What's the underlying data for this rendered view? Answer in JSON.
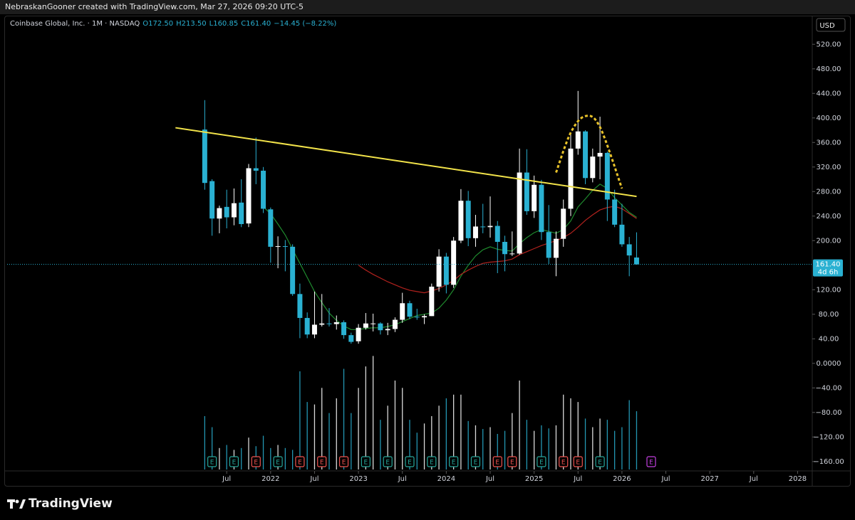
{
  "page": {
    "credit": "NebraskanGooner created with TradingView.com, Mar 27, 2026 09:20 UTC-5",
    "brand": "TradingView"
  },
  "chart_data": {
    "type": "candlestick",
    "header": {
      "name": "Coinbase Global, Inc. · 1M · NASDAQ",
      "open": "O172.50",
      "high": "H213.50",
      "low": "L160.85",
      "close": "C161.40",
      "change": "−14.45 (−8.22%)"
    },
    "currency": "USD",
    "x": [
      "2021-04",
      "2021-05",
      "2021-06",
      "2021-07",
      "2021-08",
      "2021-09",
      "2021-10",
      "2021-11",
      "2021-12",
      "2022-01",
      "2022-02",
      "2022-03",
      "2022-04",
      "2022-05",
      "2022-06",
      "2022-07",
      "2022-08",
      "2022-09",
      "2022-10",
      "2022-11",
      "2022-12",
      "2023-01",
      "2023-02",
      "2023-03",
      "2023-04",
      "2023-05",
      "2023-06",
      "2023-07",
      "2023-08",
      "2023-09",
      "2023-10",
      "2023-11",
      "2023-12",
      "2024-01",
      "2024-02",
      "2024-03",
      "2024-04",
      "2024-05",
      "2024-06",
      "2024-07",
      "2024-08",
      "2024-09",
      "2024-10",
      "2024-11",
      "2024-12",
      "2025-01",
      "2025-02",
      "2025-03",
      "2025-04",
      "2025-05",
      "2025-06",
      "2025-07",
      "2025-08",
      "2025-09",
      "2025-10",
      "2025-11",
      "2025-12",
      "2026-01",
      "2026-02",
      "2026-03"
    ],
    "open": [
      381,
      297,
      236,
      255,
      238,
      262,
      228,
      318,
      314,
      251,
      190,
      191,
      190,
      113,
      74,
      47,
      63,
      65,
      64,
      67,
      46,
      36,
      58,
      65,
      65,
      54,
      56,
      71,
      98,
      76,
      75,
      77,
      125,
      174,
      128,
      200,
      265,
      204,
      223,
      222,
      224,
      198,
      178,
      179,
      311,
      248,
      291,
      214,
      172,
      203,
      252,
      350,
      378,
      302,
      337,
      343,
      267,
      226,
      194,
      172.5
    ],
    "high": [
      429,
      300,
      257,
      283,
      285,
      300,
      325,
      368,
      320,
      254,
      207,
      201,
      194,
      130,
      83,
      117,
      113,
      90,
      78,
      70,
      50,
      64,
      82,
      81,
      67,
      66,
      75,
      115,
      102,
      89,
      80,
      130,
      186,
      180,
      206,
      284,
      281,
      242,
      260,
      272,
      232,
      208,
      215,
      350,
      349,
      306,
      299,
      258,
      215,
      267,
      375,
      444,
      380,
      350,
      402,
      345,
      283,
      260,
      206,
      213.5
    ],
    "low": [
      283,
      208,
      212,
      220,
      225,
      222,
      222,
      292,
      245,
      164,
      155,
      150,
      110,
      41,
      41,
      41,
      60,
      60,
      55,
      40,
      32,
      32,
      55,
      52,
      47,
      46,
      51,
      66,
      72,
      71,
      64,
      77,
      117,
      114,
      123,
      196,
      191,
      190,
      212,
      205,
      147,
      150,
      175,
      177,
      242,
      237,
      201,
      162,
      142,
      190,
      240,
      340,
      292,
      295,
      300,
      232,
      222,
      190,
      142,
      160.85
    ],
    "close": [
      294,
      236,
      253,
      238,
      261,
      227,
      318,
      314,
      252,
      190,
      191,
      190,
      113,
      74,
      47,
      63,
      65,
      64,
      67,
      46,
      35,
      58,
      65,
      65,
      54,
      56,
      71,
      98,
      76,
      75,
      77,
      125,
      174,
      128,
      200,
      265,
      204,
      223,
      222,
      224,
      198,
      178,
      179,
      311,
      248,
      291,
      214,
      172,
      203,
      252,
      350,
      378,
      302,
      337,
      343,
      267,
      226,
      194,
      175.85,
      161.4
    ],
    "up_color": "#ffffff",
    "down_color": "#2ab1d2",
    "overlays": [
      {
        "color": "#1f8a2e",
        "values": [
          null,
          null,
          null,
          null,
          null,
          null,
          null,
          null,
          255,
          244,
          227,
          209,
          186,
          163,
          140,
          117,
          99,
          82,
          70,
          61,
          55,
          55,
          57,
          58,
          58,
          60,
          63,
          68,
          73,
          78,
          80,
          82,
          90,
          103,
          120,
          142,
          160,
          175,
          185,
          190,
          186,
          184,
          183,
          195,
          205,
          213,
          218,
          215,
          212,
          218,
          232,
          255,
          268,
          282,
          292,
          285,
          270,
          258,
          246,
          238
        ]
      },
      {
        "color": "#b3221e",
        "values": [
          null,
          null,
          null,
          null,
          null,
          null,
          null,
          null,
          null,
          null,
          null,
          null,
          null,
          null,
          null,
          null,
          null,
          null,
          null,
          null,
          null,
          160,
          152,
          145,
          139,
          133,
          128,
          123,
          119,
          117,
          115,
          118,
          122,
          128,
          135,
          145,
          152,
          158,
          163,
          165,
          166,
          167,
          170,
          177,
          182,
          187,
          192,
          196,
          200,
          205,
          212,
          222,
          233,
          242,
          250,
          254,
          256,
          252,
          244,
          236
        ]
      }
    ],
    "volume": {
      "values": [
        -86,
        -104,
        -138,
        -133,
        -141,
        -138,
        -121,
        -135,
        -118,
        -138,
        -133,
        -138,
        -141,
        -13,
        -63,
        -67,
        -40,
        -81,
        -57,
        -9,
        -81,
        -40,
        -5,
        12,
        -92,
        -69,
        -28,
        -40,
        -92,
        -113,
        -98,
        -86,
        -69,
        -57,
        -51,
        -51,
        -94,
        -101,
        -107,
        -104,
        -115,
        -110,
        -81,
        -28,
        -92,
        -110,
        -101,
        -106,
        -101,
        -51,
        -57,
        -63,
        -90,
        -104,
        -90,
        -92,
        -110,
        -104,
        -60,
        -78
      ]
    },
    "drawings": [
      {
        "color": "#f2e34a",
        "dashed": false,
        "x": [
          "2020-12",
          "2026-03"
        ],
        "values": [
          384,
          272
        ]
      },
      {
        "color": "#e8c22a",
        "dashed": true,
        "x": [
          "2025-04",
          "2025-06",
          "2025-08",
          "2025-10",
          "2026-01"
        ],
        "values": [
          311,
          376,
          403,
          385,
          285
        ]
      }
    ],
    "events": [
      {
        "x": "2021-05",
        "label": "E",
        "color": "#26a69a"
      },
      {
        "x": "2021-08",
        "label": "E",
        "color": "#26a69a"
      },
      {
        "x": "2021-11",
        "label": "E",
        "color": "#ef5350"
      },
      {
        "x": "2022-02",
        "label": "E",
        "color": "#26a69a"
      },
      {
        "x": "2022-05",
        "label": "E",
        "color": "#ef5350"
      },
      {
        "x": "2022-08",
        "label": "E",
        "color": "#ef5350"
      },
      {
        "x": "2022-11",
        "label": "E",
        "color": "#ef5350"
      },
      {
        "x": "2023-02",
        "label": "E",
        "color": "#26a69a"
      },
      {
        "x": "2023-05",
        "label": "E",
        "color": "#26a69a"
      },
      {
        "x": "2023-08",
        "label": "E",
        "color": "#26a69a"
      },
      {
        "x": "2023-11",
        "label": "E",
        "color": "#26a69a"
      },
      {
        "x": "2024-02",
        "label": "E",
        "color": "#26a69a"
      },
      {
        "x": "2024-05",
        "label": "E",
        "color": "#26a69a"
      },
      {
        "x": "2024-08",
        "label": "E",
        "color": "#ef5350"
      },
      {
        "x": "2024-10",
        "label": "E",
        "color": "#ef5350"
      },
      {
        "x": "2025-02",
        "label": "E",
        "color": "#26a69a"
      },
      {
        "x": "2025-05",
        "label": "E",
        "color": "#ef5350"
      },
      {
        "x": "2025-07",
        "label": "E",
        "color": "#ef5350"
      },
      {
        "x": "2025-10",
        "label": "E",
        "color": "#26a69a"
      },
      {
        "x": "2026-05",
        "label": "E",
        "color": "#c23fe0"
      }
    ],
    "last_price": {
      "value": 161.4,
      "label": "161.40",
      "countdown": "4d 6h",
      "color": "#2ab1d2"
    },
    "xlim": [
      "2019-01",
      "2028-03"
    ],
    "xticks": [
      {
        "value": "2021-07",
        "label": "Jul"
      },
      {
        "value": "2022-01",
        "label": "2022"
      },
      {
        "value": "2022-07",
        "label": "Jul"
      },
      {
        "value": "2023-01",
        "label": "2023"
      },
      {
        "value": "2023-07",
        "label": "Jul"
      },
      {
        "value": "2024-01",
        "label": "2024"
      },
      {
        "value": "2024-07",
        "label": "Jul"
      },
      {
        "value": "2025-01",
        "label": "2025"
      },
      {
        "value": "2025-07",
        "label": "Jul"
      },
      {
        "value": "2026-01",
        "label": "2026"
      },
      {
        "value": "2026-07",
        "label": "Jul"
      },
      {
        "value": "2027-01",
        "label": "2027"
      },
      {
        "value": "2027-07",
        "label": "Jul"
      },
      {
        "value": "2028-01",
        "label": "2028"
      }
    ],
    "ylim": [
      -173,
      569
    ],
    "yticks": [
      {
        "value": 520,
        "label": "520.00"
      },
      {
        "value": 480,
        "label": "480.00"
      },
      {
        "value": 440,
        "label": "440.00"
      },
      {
        "value": 400,
        "label": "400.00"
      },
      {
        "value": 360,
        "label": "360.00"
      },
      {
        "value": 320,
        "label": "320.00"
      },
      {
        "value": 280,
        "label": "280.00"
      },
      {
        "value": 240,
        "label": "240.00"
      },
      {
        "value": 200,
        "label": "200.00"
      },
      {
        "value": 120,
        "label": "120.00"
      },
      {
        "value": 80,
        "label": "80.00"
      },
      {
        "value": 40,
        "label": "40.00"
      },
      {
        "value": 0,
        "label": "0.0000"
      },
      {
        "value": -40,
        "label": "−40.00"
      },
      {
        "value": -80,
        "label": "−80.00"
      },
      {
        "value": -120,
        "label": "−120.00"
      },
      {
        "value": -160,
        "label": "−160.00"
      }
    ],
    "grid": false
  }
}
